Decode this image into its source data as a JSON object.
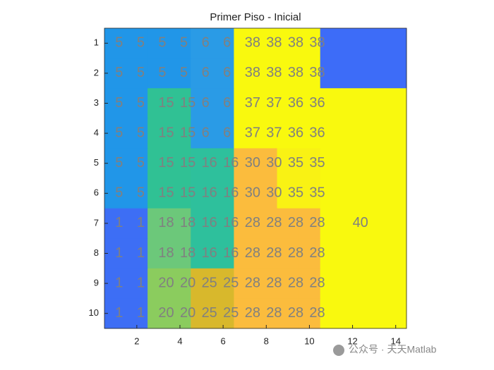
{
  "chart_data": {
    "type": "heatmap",
    "title": "Primer Piso - Inicial",
    "xlim": [
      0.5,
      14.5
    ],
    "ylim": [
      0.5,
      10.5
    ],
    "y_reversed": true,
    "xticks": [
      2,
      4,
      6,
      8,
      10,
      12,
      14
    ],
    "yticks": [
      1,
      2,
      3,
      4,
      5,
      6,
      7,
      8,
      9,
      10
    ],
    "label_color": "#808080",
    "values": [
      [
        5,
        5,
        5,
        5,
        6,
        6,
        38,
        38,
        38,
        38,
        null,
        null,
        null,
        null
      ],
      [
        5,
        5,
        5,
        5,
        6,
        6,
        38,
        38,
        38,
        38,
        null,
        null,
        null,
        null
      ],
      [
        5,
        5,
        15,
        15,
        6,
        6,
        37,
        37,
        36,
        36,
        null,
        null,
        null,
        null
      ],
      [
        5,
        5,
        15,
        15,
        6,
        6,
        37,
        37,
        36,
        36,
        null,
        null,
        null,
        null
      ],
      [
        5,
        5,
        15,
        15,
        16,
        16,
        30,
        30,
        35,
        35,
        null,
        null,
        null,
        null
      ],
      [
        5,
        5,
        15,
        15,
        16,
        16,
        30,
        30,
        35,
        35,
        null,
        null,
        null,
        null
      ],
      [
        1,
        1,
        18,
        18,
        16,
        16,
        28,
        28,
        28,
        28,
        null,
        40,
        null,
        null
      ],
      [
        1,
        1,
        18,
        18,
        16,
        16,
        28,
        28,
        28,
        28,
        null,
        null,
        null,
        null
      ],
      [
        1,
        1,
        20,
        20,
        25,
        25,
        28,
        28,
        28,
        28,
        null,
        null,
        null,
        null
      ],
      [
        1,
        1,
        20,
        20,
        25,
        25,
        28,
        28,
        28,
        28,
        null,
        null,
        null,
        null
      ]
    ],
    "colors": [
      [
        "#2196e8",
        "#2196e8",
        "#2196e8",
        "#2196e8",
        "#2a9be6",
        "#2a9be6",
        "#f9f90e",
        "#f9f90e",
        "#f9f90e",
        "#f9f90e",
        "#3d6cf8",
        "#3d6cf8",
        "#3d6cf8",
        "#3d6cf8"
      ],
      [
        "#2196e8",
        "#2196e8",
        "#2196e8",
        "#2196e8",
        "#2a9be6",
        "#2a9be6",
        "#f9f90e",
        "#f9f90e",
        "#f9f90e",
        "#f9f90e",
        "#3d6cf8",
        "#3d6cf8",
        "#3d6cf8",
        "#3d6cf8"
      ],
      [
        "#2196e8",
        "#2196e8",
        "#30c194",
        "#30c194",
        "#2a9be6",
        "#2a9be6",
        "#f9f90e",
        "#f9f90e",
        "#f9f90e",
        "#f9f90e",
        "#f9f90e",
        "#f9f90e",
        "#f9f90e",
        "#f9f90e"
      ],
      [
        "#2196e8",
        "#2196e8",
        "#30c194",
        "#30c194",
        "#2a9be6",
        "#2a9be6",
        "#f9f90e",
        "#f9f90e",
        "#f9f90e",
        "#f9f90e",
        "#f9f90e",
        "#f9f90e",
        "#f9f90e",
        "#f9f90e"
      ],
      [
        "#2196e8",
        "#2196e8",
        "#30c194",
        "#30c194",
        "#2ec09c",
        "#2ec09c",
        "#fbbc3d",
        "#fbbc3d",
        "#f9f214",
        "#f9f214",
        "#f9f90e",
        "#f9f90e",
        "#f9f90e",
        "#f9f90e"
      ],
      [
        "#2196e8",
        "#2196e8",
        "#30c194",
        "#30c194",
        "#2ec09c",
        "#2ec09c",
        "#fbbc3d",
        "#fbbc3d",
        "#f9f214",
        "#f9f214",
        "#f9f90e",
        "#f9f90e",
        "#f9f90e",
        "#f9f90e"
      ],
      [
        "#3d6ef5",
        "#3d6ef5",
        "#6cc87a",
        "#6cc87a",
        "#2ec09c",
        "#2ec09c",
        "#fbbc3d",
        "#fbbc3d",
        "#fbbc3d",
        "#fbbc3d",
        "#f9f90e",
        "#f9f90e",
        "#f9f90e",
        "#f9f90e"
      ],
      [
        "#3d6ef5",
        "#3d6ef5",
        "#6cc87a",
        "#6cc87a",
        "#2ec09c",
        "#2ec09c",
        "#fbbc3d",
        "#fbbc3d",
        "#fbbc3d",
        "#fbbc3d",
        "#f9f90e",
        "#f9f90e",
        "#f9f90e",
        "#f9f90e"
      ],
      [
        "#3d6ef5",
        "#3d6ef5",
        "#8bcc5e",
        "#8bcc5e",
        "#d8b82c",
        "#d8b82c",
        "#fbbc3d",
        "#fbbc3d",
        "#fbbc3d",
        "#fbbc3d",
        "#f9f90e",
        "#f9f90e",
        "#f9f90e",
        "#f9f90e"
      ],
      [
        "#3d6ef5",
        "#3d6ef5",
        "#8bcc5e",
        "#8bcc5e",
        "#d8b82c",
        "#d8b82c",
        "#fbbc3d",
        "#fbbc3d",
        "#fbbc3d",
        "#fbbc3d",
        "#f9f90e",
        "#f9f90e",
        "#f9f90e",
        "#f9f90e"
      ]
    ],
    "watermark": "公众号 · 天天Matlab"
  }
}
